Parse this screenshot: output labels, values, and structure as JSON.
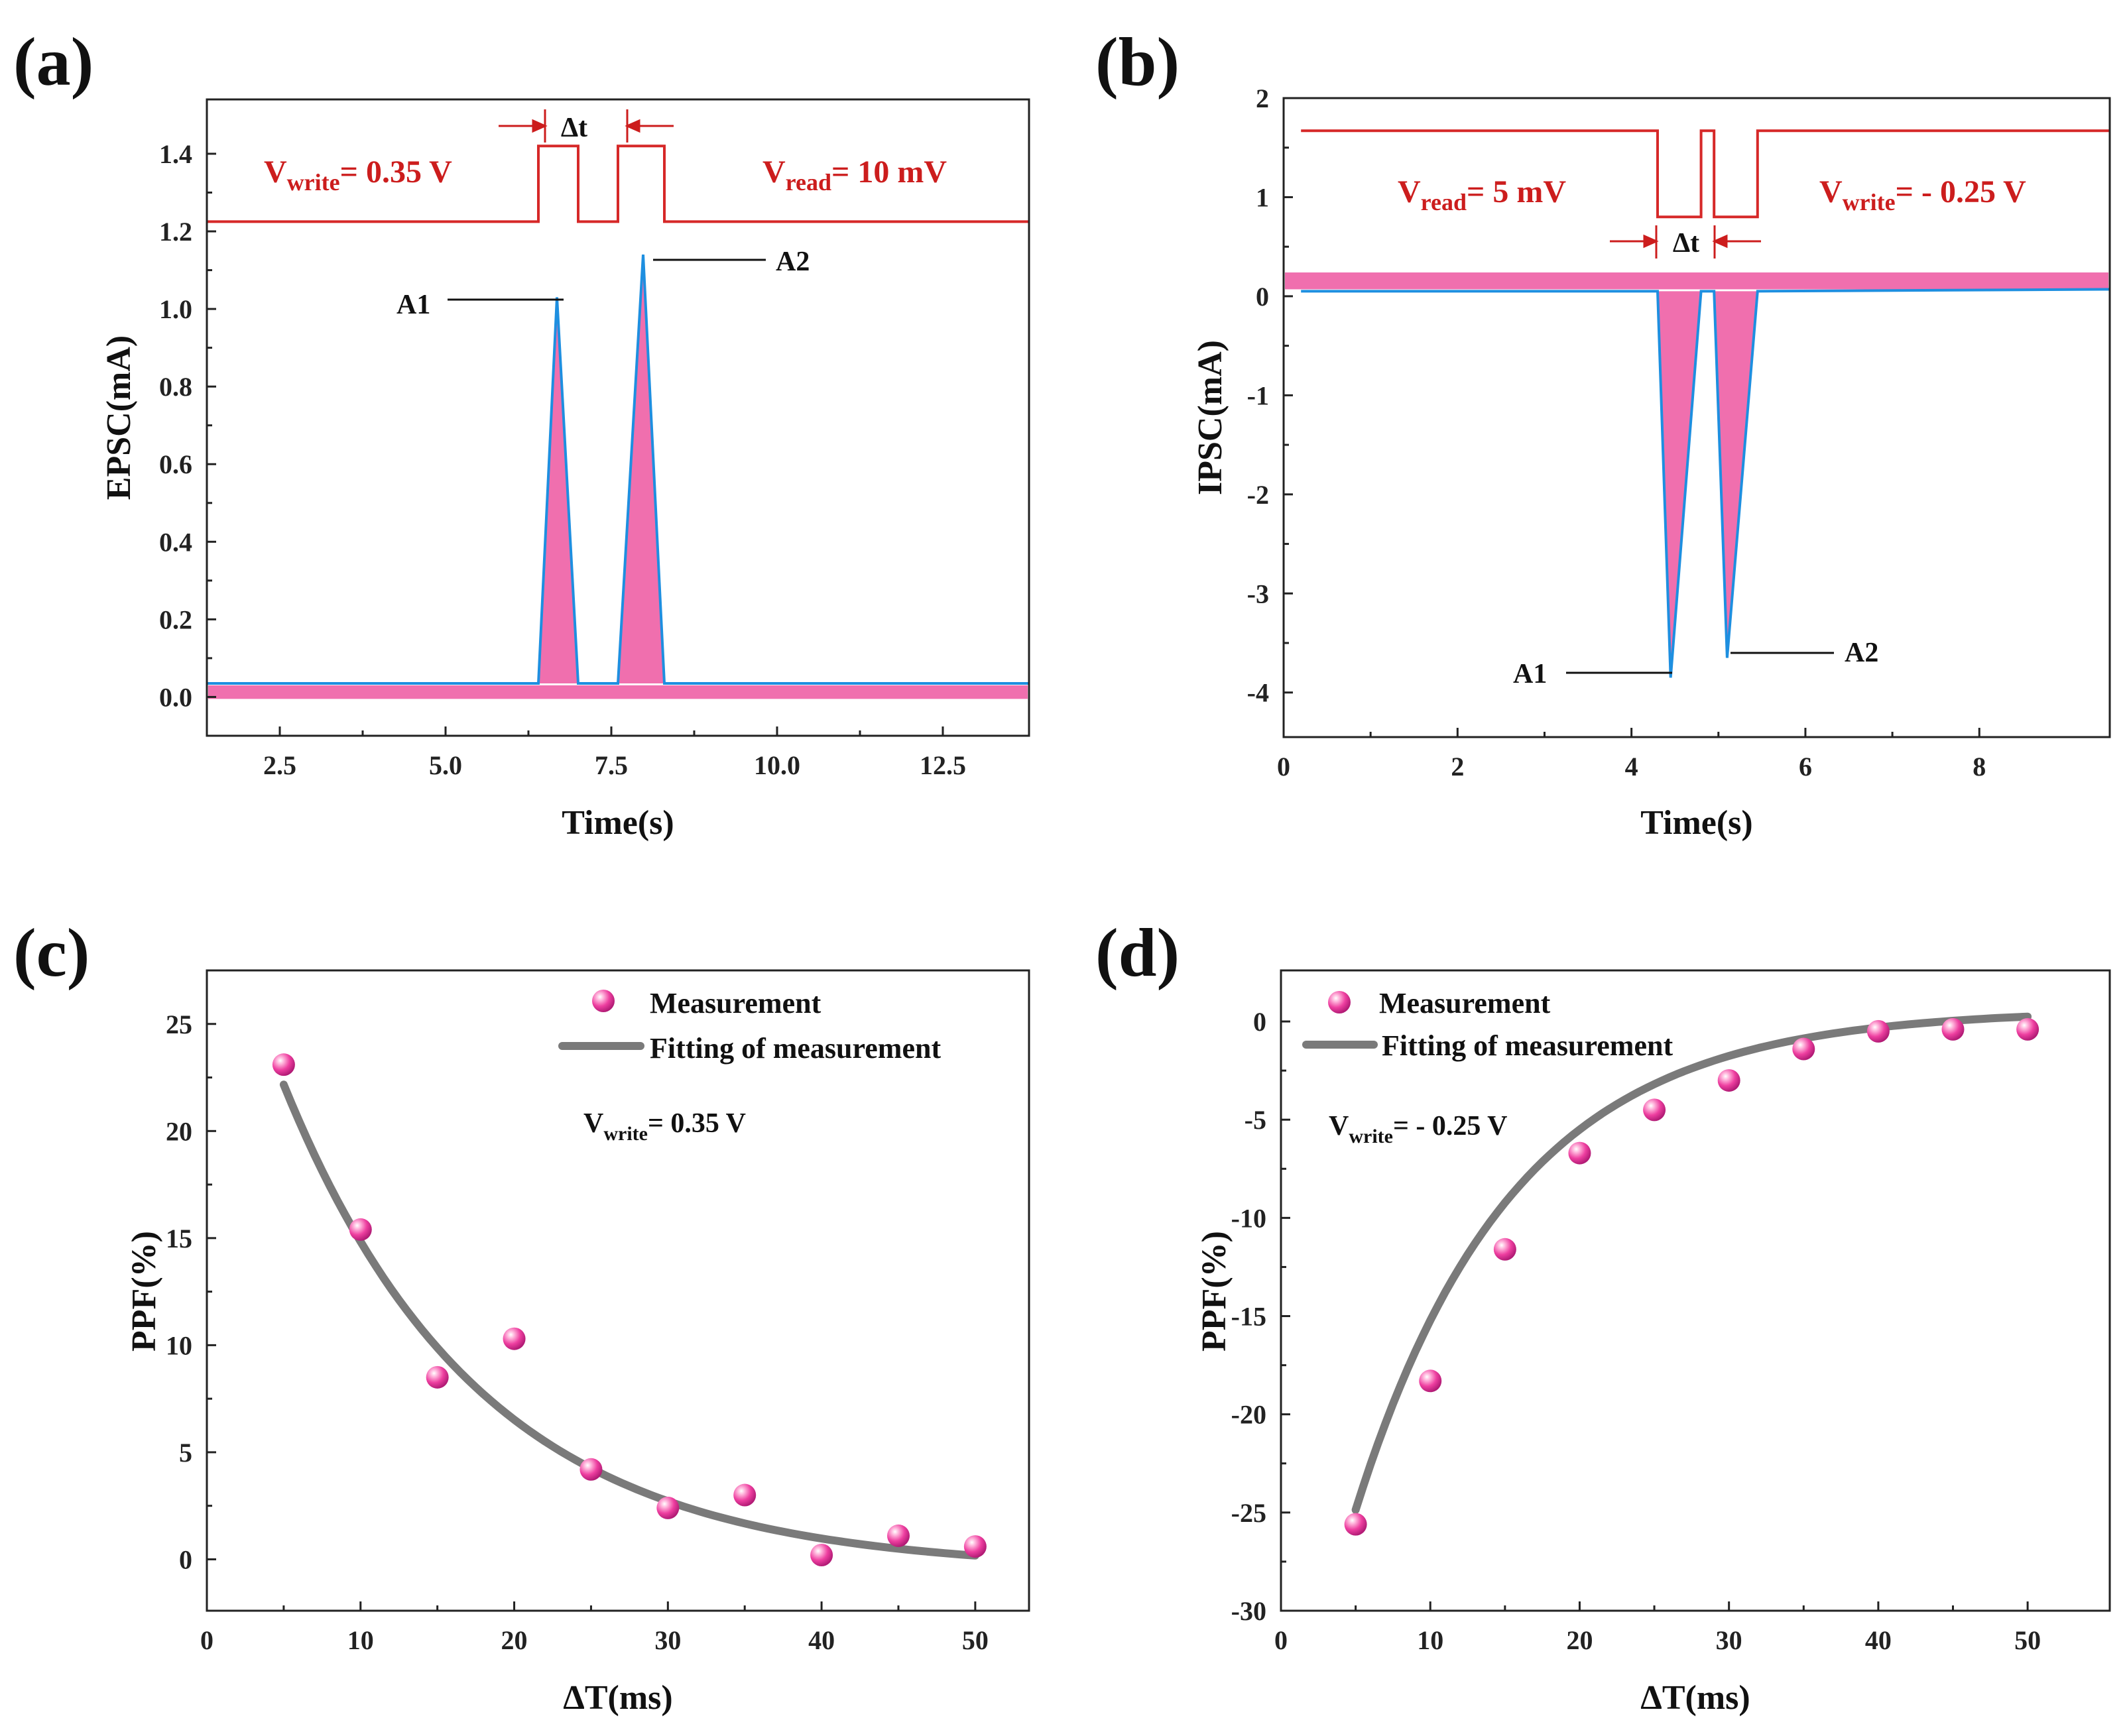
{
  "chart_data": [
    {
      "panel": "(a)",
      "type": "line",
      "xlabel": "Time(s)",
      "ylabel": "EPSC(mA)",
      "xlim": [
        1.4,
        13.8
      ],
      "ylim": [
        -0.1,
        1.54
      ],
      "xticks": [
        2.5,
        5.0,
        7.5,
        10.0,
        12.5
      ],
      "xtick_labels": [
        "2.5",
        "5.0",
        "7.5",
        "10.0",
        "12.5"
      ],
      "yticks": [
        0.0,
        0.2,
        0.4,
        0.6,
        0.8,
        1.0,
        1.2,
        1.4
      ],
      "ytick_labels": [
        "0.0",
        "0.2",
        "0.4",
        "0.6",
        "0.8",
        "1.0",
        "1.2",
        "1.4"
      ],
      "series": [
        {
          "name": "voltage pulses",
          "color": "#d62828",
          "x": [
            1.4,
            6.4,
            6.4,
            7.0,
            7.0,
            7.6,
            7.6,
            8.3,
            8.3,
            13.8
          ],
          "y": [
            1.225,
            1.225,
            1.42,
            1.42,
            1.225,
            1.225,
            1.42,
            1.42,
            1.225,
            1.225
          ]
        },
        {
          "name": "current response",
          "color": "#1e8fe0",
          "x": [
            1.4,
            6.4,
            6.68,
            7.0,
            7.6,
            7.98,
            8.3,
            13.8
          ],
          "y": [
            0.035,
            0.035,
            1.03,
            0.035,
            0.035,
            1.14,
            0.035,
            0.035
          ]
        }
      ],
      "fill_color": "#f06fae",
      "baseline_band": [
        -0.005,
        0.03
      ],
      "annotations": {
        "vwrite_main": "V",
        "vwrite_sub": "write",
        "vwrite_rest": "= 0.35 V",
        "vread_main": "V",
        "vread_sub": "read",
        "vread_rest": "= 10 mV",
        "dt": "Δt",
        "a1": "A1",
        "a2": "A2"
      }
    },
    {
      "panel": "(b)",
      "type": "line",
      "xlabel": "Time(s)",
      "ylabel": "IPSC(mA)",
      "xlim": [
        0,
        9.5
      ],
      "ylim": [
        -4.45,
        2.0
      ],
      "xticks": [
        0,
        2,
        4,
        6,
        8
      ],
      "xtick_labels": [
        "0",
        "2",
        "4",
        "6",
        "8"
      ],
      "yticks": [
        2,
        1,
        0,
        -1,
        -2,
        -3,
        -4
      ],
      "ytick_labels": [
        "2",
        "1",
        "0",
        "-1",
        "-2",
        "-3",
        "-4"
      ],
      "series": [
        {
          "name": "voltage pulses",
          "color": "#d62828",
          "x": [
            0.2,
            4.3,
            4.3,
            4.8,
            4.8,
            4.95,
            4.95,
            5.45,
            5.45,
            9.5
          ],
          "y": [
            1.67,
            1.67,
            0.8,
            0.8,
            1.67,
            1.67,
            0.8,
            0.8,
            1.67,
            1.67
          ]
        },
        {
          "name": "current response",
          "color": "#1e8fe0",
          "x": [
            0.2,
            4.3,
            4.45,
            4.8,
            4.95,
            5.1,
            5.45,
            9.5
          ],
          "y": [
            0.05,
            0.05,
            -3.85,
            0.05,
            0.05,
            -3.65,
            0.05,
            0.07
          ]
        }
      ],
      "fill_color": "#f06fae",
      "baseline_band": [
        0.07,
        0.24
      ],
      "annotations": {
        "vread_main": "V",
        "vread_sub": "read",
        "vread_rest": "= 5 mV",
        "vwrite_main": "V",
        "vwrite_sub": "write",
        "vwrite_rest": "= - 0.25 V",
        "dt": "Δt",
        "a1": "A1",
        "a2": "A2"
      }
    },
    {
      "panel": "(c)",
      "type": "scatter",
      "xlabel": "ΔT(ms)",
      "ylabel": "PPF(%)",
      "xlim": [
        0,
        53.5
      ],
      "ylim": [
        -2.4,
        27.5
      ],
      "xticks": [
        0,
        10,
        20,
        30,
        40,
        50
      ],
      "xtick_labels": [
        "0",
        "10",
        "20",
        "30",
        "40",
        "50"
      ],
      "yticks": [
        0,
        5,
        10,
        15,
        20,
        25
      ],
      "ytick_labels": [
        "0",
        "5",
        "10",
        "15",
        "20",
        "25"
      ],
      "measurement": {
        "x": [
          5,
          10,
          15,
          20,
          25,
          30,
          35,
          40,
          45,
          50
        ],
        "y": [
          23.1,
          15.4,
          8.5,
          10.3,
          4.2,
          2.4,
          3.0,
          0.2,
          1.1,
          0.6
        ]
      },
      "fit": {
        "model": "A*exp(-x/tau)+C",
        "A": 33.5,
        "tau": 12.8,
        "C": -0.5,
        "x_range": [
          5,
          50
        ]
      },
      "marker_color": "#ee3fa0",
      "fit_color": "#7a7a7a",
      "legend": {
        "measurement": "Measurement",
        "fit": "Fitting of measurement"
      },
      "annotation": {
        "main": "V",
        "sub": "write",
        "rest": "= 0.35 V"
      }
    },
    {
      "panel": "(d)",
      "type": "scatter",
      "xlabel": "ΔT(ms)",
      "ylabel": "PPF(%)",
      "xlim": [
        0,
        55.5
      ],
      "ylim": [
        -30,
        2.6
      ],
      "xticks": [
        0,
        10,
        20,
        30,
        40,
        50
      ],
      "xtick_labels": [
        "0",
        "10",
        "20",
        "30",
        "40",
        "50"
      ],
      "yticks": [
        0,
        -5,
        -10,
        -15,
        -20,
        -25,
        -30
      ],
      "ytick_labels": [
        "0",
        "-5",
        "-10",
        "-15",
        "-20",
        "-25",
        "-30"
      ],
      "measurement": {
        "x": [
          5,
          10,
          15,
          20,
          25,
          30,
          35,
          40,
          45,
          50
        ],
        "y": [
          -25.6,
          -18.3,
          -11.6,
          -6.7,
          -4.5,
          -3.0,
          -1.4,
          -0.5,
          -0.4,
          -0.4
        ]
      },
      "fit": {
        "model": "C-A*exp(-x/tau)",
        "A": 41.0,
        "tau": 10.5,
        "C": 0.6,
        "x_range": [
          5,
          50
        ]
      },
      "marker_color": "#ee3fa0",
      "fit_color": "#7a7a7a",
      "legend": {
        "measurement": "Measurement",
        "fit": "Fitting of measurement"
      },
      "annotation": {
        "main": "V",
        "sub": "write",
        "rest": "= - 0.25 V"
      }
    }
  ]
}
